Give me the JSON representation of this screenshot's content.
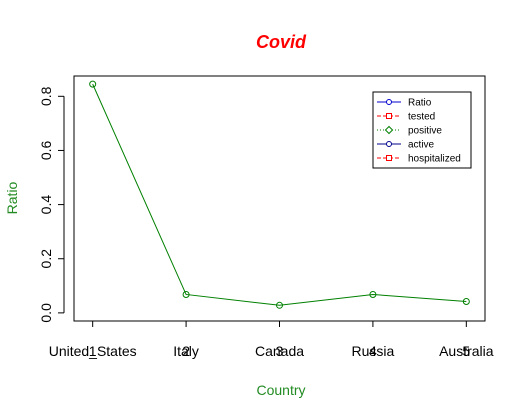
{
  "chart_data": {
    "type": "line",
    "title": "Covid",
    "xlabel": "Country",
    "ylabel": "Ratio",
    "colors": {
      "title": "#ff0000",
      "axis_label": "#228b22",
      "line": "#008000",
      "frame": "#000000"
    },
    "x": [
      1,
      2,
      3,
      4,
      5
    ],
    "x_tick_labels": [
      "1",
      "2",
      "3",
      "4",
      "5"
    ],
    "categories": [
      "United_States",
      "Italy",
      "Canada",
      "Russia",
      "Australia"
    ],
    "series": [
      {
        "name": "Ratio",
        "values": [
          0.845,
          0.068,
          0.028,
          0.068,
          0.042
        ]
      }
    ],
    "xlim": [
      0.8,
      5.2
    ],
    "ylim": [
      -0.03,
      0.875
    ],
    "y_ticks": [
      0.0,
      0.2,
      0.4,
      0.6,
      0.8
    ],
    "y_tick_labels": [
      "0.0",
      "0.2",
      "0.4",
      "0.6",
      "0.8"
    ],
    "grid": false,
    "legend_position": "top-right",
    "legend": [
      {
        "label": "Ratio",
        "color": "#0000cd",
        "dash": "solid",
        "marker": "circle"
      },
      {
        "label": "tested",
        "color": "#ff0000",
        "dash": "dashed",
        "marker": "square"
      },
      {
        "label": "positive",
        "color": "#008000",
        "dash": "dotted",
        "marker": "diamond"
      },
      {
        "label": "active",
        "color": "#00008b",
        "dash": "solid",
        "marker": "circle"
      },
      {
        "label": "hospitalized",
        "color": "#ff0000",
        "dash": "dashed",
        "marker": "square"
      }
    ]
  }
}
